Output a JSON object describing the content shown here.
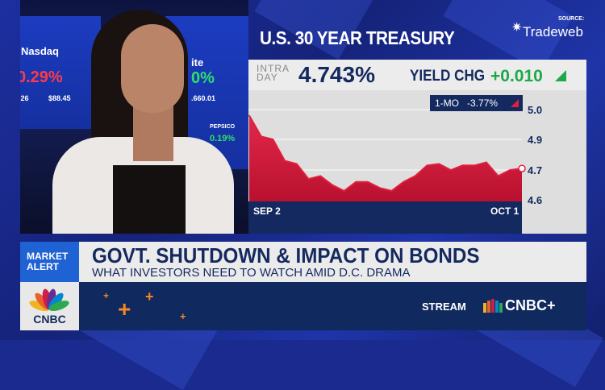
{
  "background_video": {
    "wall_texts": [
      "Nasdaq",
      "0.29%",
      "$88.45",
      ".26",
      "ite",
      "0%",
      ".660.01",
      "PEPSICO",
      "0.19%"
    ]
  },
  "graphic": {
    "title": "U.S. 30 YEAR TREASURY",
    "source_label": "SOURCE:",
    "source_name": "Tradeweb",
    "intraday_label_1": "INTRA",
    "intraday_label_2": "DAY",
    "intraday_value": "4.743%",
    "yield_chg_label": "YIELD CHG",
    "yield_chg_value": "+0.010",
    "badge_period": "1-MO",
    "badge_change": "-3.77%",
    "colors": {
      "up": "#1ea84a",
      "down": "#e0203c",
      "navy": "#13295f"
    }
  },
  "chart_data": {
    "type": "area",
    "x_tick_labels": [
      "SEP 2",
      "OCT 1"
    ],
    "y_tick_labels": [
      "5.0",
      "4.9",
      "4.7",
      "4.6"
    ],
    "values": [
      4.98,
      4.91,
      4.9,
      4.76,
      4.74,
      4.67,
      4.68,
      4.65,
      4.63,
      4.66,
      4.66,
      4.64,
      4.63,
      4.66,
      4.68,
      4.73,
      4.74,
      4.7,
      4.73,
      4.73,
      4.75,
      4.68,
      4.7,
      4.71
    ],
    "last_value": 4.743,
    "grid": true,
    "series_color": "#e0203c"
  },
  "banner": {
    "tag_line1": "MARKET",
    "tag_line2": "ALERT",
    "headline": "GOVT. SHUTDOWN & IMPACT ON BONDS",
    "subheadline": "WHAT INVESTORS NEED TO WATCH AMID D.C. DRAMA",
    "network": "CNBC",
    "stream_label": "STREAM",
    "stream_brand": "CNBC+"
  }
}
